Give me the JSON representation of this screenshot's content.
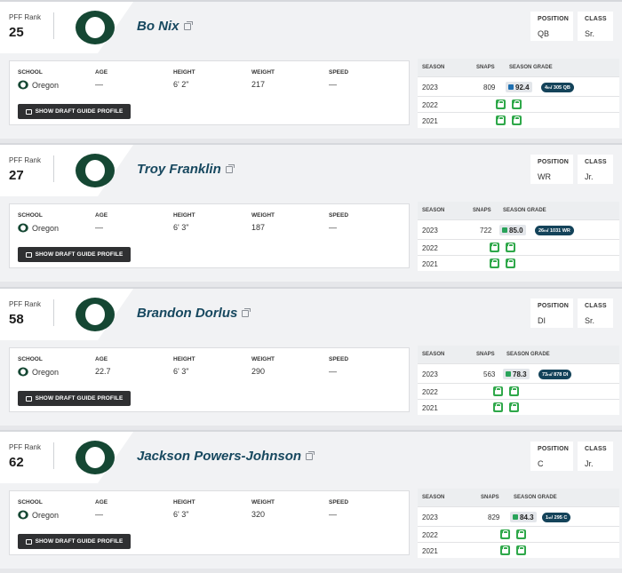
{
  "colors": {
    "team_green": "#154733",
    "grade_blue": "#1e6fb0",
    "grade_green": "#29a35a",
    "lock_green": "#2fa84a",
    "rank_pill": "#14435a"
  },
  "labels": {
    "pff_rank": "PFF Rank",
    "position": "POSITION",
    "class": "CLASS",
    "school": "SCHOOL",
    "age": "AGE",
    "height": "HEIGHT",
    "weight": "WEIGHT",
    "speed": "SPEED",
    "season": "SEASON",
    "snaps": "SNAPS",
    "season_grade": "SEASON GRADE",
    "draft_button": "SHOW DRAFT GUIDE PROFILE"
  },
  "players": [
    {
      "rank": "25",
      "name": "Bo Nix",
      "position": "QB",
      "class": "Sr.",
      "school": "Oregon",
      "age": "—",
      "height": "6' 2\"",
      "weight": "217",
      "speed": "—",
      "seasons": [
        {
          "year": "2023",
          "snaps": "809",
          "grade": "92.4",
          "grade_color": "#1e6fb0",
          "rank_ord": "4",
          "rank_suffix": "th",
          "rank_rest": " / 305 QB"
        },
        {
          "year": "2022",
          "locked": true
        },
        {
          "year": "2021",
          "locked": true
        }
      ]
    },
    {
      "rank": "27",
      "name": "Troy Franklin",
      "position": "WR",
      "class": "Jr.",
      "school": "Oregon",
      "age": "—",
      "height": "6' 3\"",
      "weight": "187",
      "speed": "—",
      "seasons": [
        {
          "year": "2023",
          "snaps": "722",
          "grade": "85.0",
          "grade_color": "#29a35a",
          "rank_ord": "26",
          "rank_suffix": "th",
          "rank_rest": " / 1031 WR"
        },
        {
          "year": "2022",
          "locked": true
        },
        {
          "year": "2021",
          "locked": true
        }
      ]
    },
    {
      "rank": "58",
      "name": "Brandon Dorlus",
      "position": "DI",
      "class": "Sr.",
      "school": "Oregon",
      "age": "22.7",
      "height": "6' 3\"",
      "weight": "290",
      "speed": "—",
      "seasons": [
        {
          "year": "2023",
          "snaps": "563",
          "grade": "78.3",
          "grade_color": "#29a35a",
          "rank_ord": "73",
          "rank_suffix": "rd",
          "rank_rest": " / 878 DI"
        },
        {
          "year": "2022",
          "locked": true
        },
        {
          "year": "2021",
          "locked": true
        }
      ]
    },
    {
      "rank": "62",
      "name": "Jackson Powers-Johnson",
      "position": "C",
      "class": "Jr.",
      "school": "Oregon",
      "age": "—",
      "height": "6' 3\"",
      "weight": "320",
      "speed": "—",
      "seasons": [
        {
          "year": "2023",
          "snaps": "829",
          "grade": "84.3",
          "grade_color": "#29a35a",
          "rank_ord": "1",
          "rank_suffix": "st",
          "rank_rest": " / 295 C"
        },
        {
          "year": "2022",
          "locked": true
        },
        {
          "year": "2021",
          "locked": true
        }
      ]
    }
  ]
}
